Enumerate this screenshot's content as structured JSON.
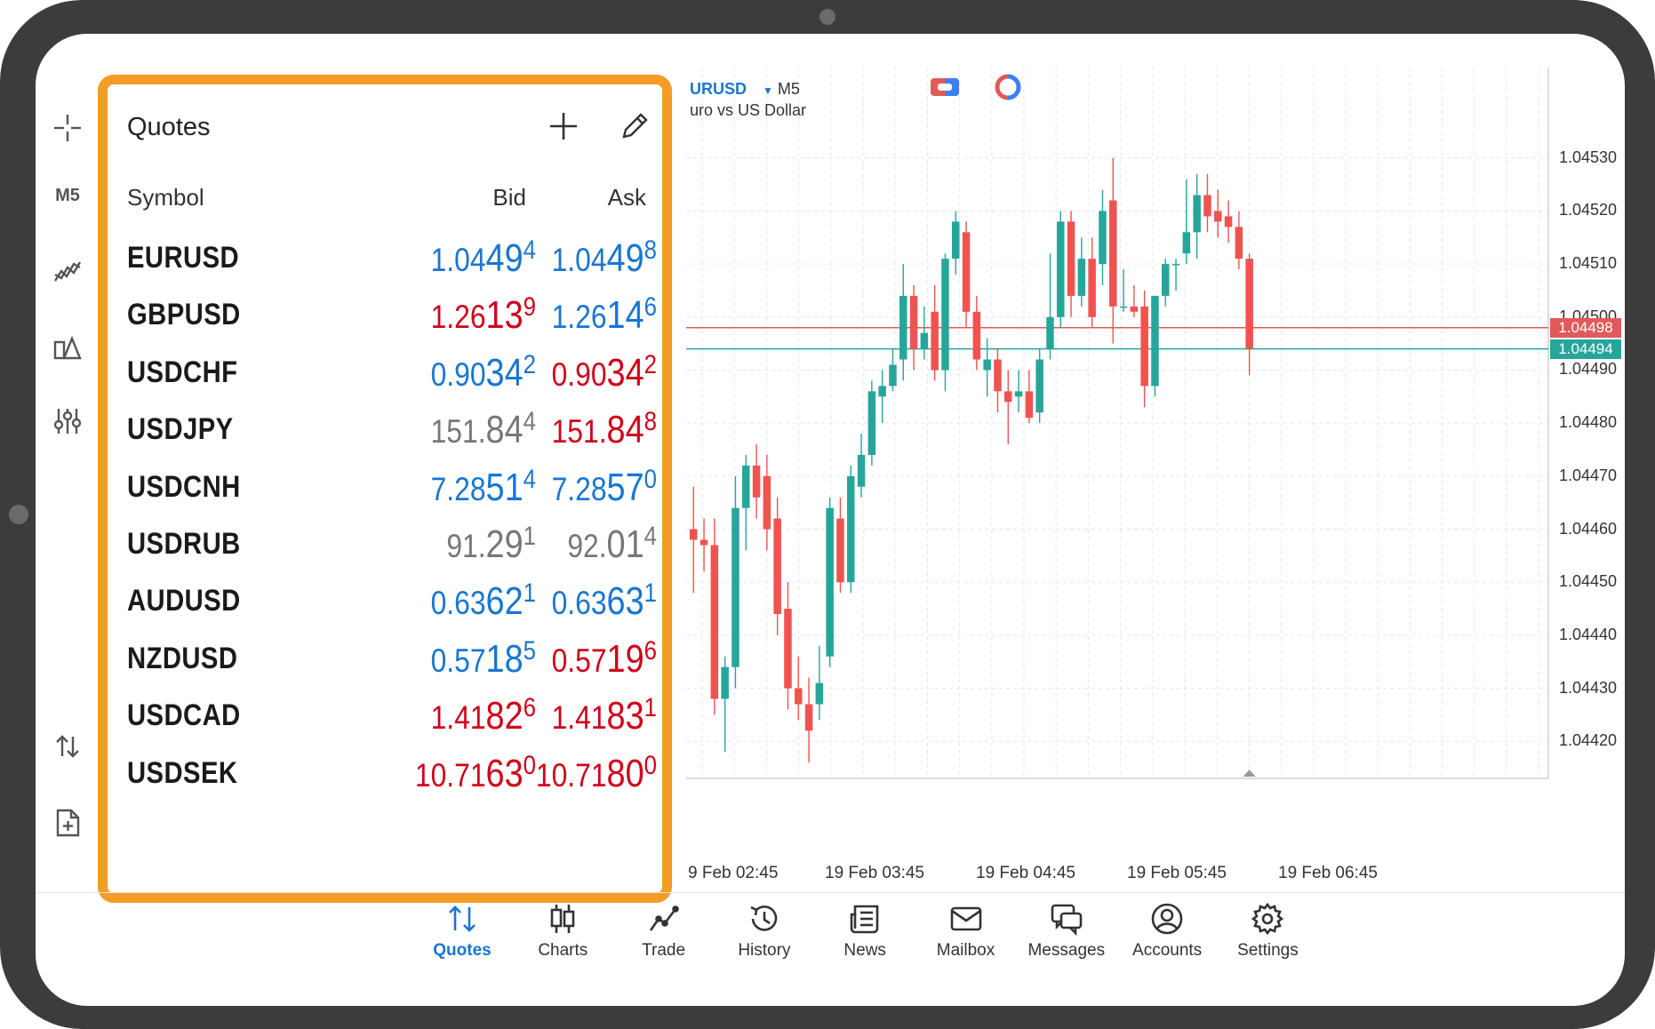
{
  "left_toolbar": {
    "timeframe_label": "M5"
  },
  "quotes": {
    "title": "Quotes",
    "columns": {
      "symbol": "Symbol",
      "bid": "Bid",
      "ask": "Ask"
    },
    "rows": [
      {
        "symbol": "EURUSD",
        "bid": [
          "1.04",
          "49",
          "4"
        ],
        "ask": [
          "1.04",
          "49",
          "8"
        ],
        "bid_dir": "up",
        "ask_dir": "up"
      },
      {
        "symbol": "GBPUSD",
        "bid": [
          "1.26",
          "13",
          "9"
        ],
        "ask": [
          "1.26",
          "14",
          "6"
        ],
        "bid_dir": "down",
        "ask_dir": "up"
      },
      {
        "symbol": "USDCHF",
        "bid": [
          "0.90",
          "34",
          "2"
        ],
        "ask": [
          "0.90",
          "34",
          "2"
        ],
        "bid_dir": "up",
        "ask_dir": "down"
      },
      {
        "symbol": "USDJPY",
        "bid": [
          "151.",
          "84",
          "4"
        ],
        "ask": [
          "151.",
          "84",
          "8"
        ],
        "bid_dir": "flat",
        "ask_dir": "down"
      },
      {
        "symbol": "USDCNH",
        "bid": [
          "7.28",
          "51",
          "4"
        ],
        "ask": [
          "7.28",
          "57",
          "0"
        ],
        "bid_dir": "up",
        "ask_dir": "up"
      },
      {
        "symbol": "USDRUB",
        "bid": [
          "91.",
          "29",
          "1"
        ],
        "ask": [
          "92.",
          "01",
          "4"
        ],
        "bid_dir": "flat",
        "ask_dir": "flat"
      },
      {
        "symbol": "AUDUSD",
        "bid": [
          "0.63",
          "62",
          "1"
        ],
        "ask": [
          "0.63",
          "63",
          "1"
        ],
        "bid_dir": "up",
        "ask_dir": "up"
      },
      {
        "symbol": "NZDUSD",
        "bid": [
          "0.57",
          "18",
          "5"
        ],
        "ask": [
          "0.57",
          "19",
          "6"
        ],
        "bid_dir": "up",
        "ask_dir": "down"
      },
      {
        "symbol": "USDCAD",
        "bid": [
          "1.41",
          "82",
          "6"
        ],
        "ask": [
          "1.41",
          "83",
          "1"
        ],
        "bid_dir": "down",
        "ask_dir": "down"
      },
      {
        "symbol": "USDSEK",
        "bid": [
          "10.71",
          "63",
          "0"
        ],
        "ask": [
          "10.71",
          "80",
          "0"
        ],
        "bid_dir": "down",
        "ask_dir": "down"
      }
    ]
  },
  "chart": {
    "symbol": "URUSD",
    "timeframe": "M5",
    "description": "uro vs US Dollar",
    "ask_tag": "1.04498",
    "bid_tag": "1.04494",
    "ask_color": "#e15a5a",
    "bid_color": "#26a69a",
    "price_labels": [
      "1.04530",
      "1.04520",
      "1.04510",
      "1.04500",
      "1.04490",
      "1.04480",
      "1.04470",
      "1.04460",
      "1.04450",
      "1.04440",
      "1.04430",
      "1.04420"
    ],
    "time_labels": [
      "9 Feb 02:45",
      "19 Feb 03:45",
      "19 Feb 04:45",
      "19 Feb 05:45",
      "19 Feb 06:45"
    ],
    "chart_data": {
      "type": "candlestick",
      "ylim": [
        1.04413,
        1.04537
      ],
      "bull_color": "#26a69a",
      "bear_color": "#ef5350",
      "candles": [
        {
          "o": 1.0446,
          "h": 1.04468,
          "l": 1.04448,
          "c": 1.04458
        },
        {
          "o": 1.04458,
          "h": 1.04462,
          "l": 1.04452,
          "c": 1.04457
        },
        {
          "o": 1.04457,
          "h": 1.04462,
          "l": 1.04425,
          "c": 1.04428
        },
        {
          "o": 1.04428,
          "h": 1.04436,
          "l": 1.04418,
          "c": 1.04434
        },
        {
          "o": 1.04434,
          "h": 1.0447,
          "l": 1.0443,
          "c": 1.04464
        },
        {
          "o": 1.04464,
          "h": 1.04474,
          "l": 1.04456,
          "c": 1.04472
        },
        {
          "o": 1.04472,
          "h": 1.04476,
          "l": 1.04462,
          "c": 1.04466
        },
        {
          "o": 1.0447,
          "h": 1.04474,
          "l": 1.04456,
          "c": 1.0446
        },
        {
          "o": 1.04462,
          "h": 1.04466,
          "l": 1.0444,
          "c": 1.04444
        },
        {
          "o": 1.04445,
          "h": 1.0445,
          "l": 1.04426,
          "c": 1.0443
        },
        {
          "o": 1.0443,
          "h": 1.04436,
          "l": 1.04424,
          "c": 1.04427
        },
        {
          "o": 1.04427,
          "h": 1.04432,
          "l": 1.04416,
          "c": 1.04422
        },
        {
          "o": 1.04427,
          "h": 1.04438,
          "l": 1.04424,
          "c": 1.04431
        },
        {
          "o": 1.04436,
          "h": 1.04466,
          "l": 1.04434,
          "c": 1.04464
        },
        {
          "o": 1.04462,
          "h": 1.04466,
          "l": 1.04448,
          "c": 1.0445
        },
        {
          "o": 1.0445,
          "h": 1.04472,
          "l": 1.04448,
          "c": 1.0447
        },
        {
          "o": 1.04468,
          "h": 1.04478,
          "l": 1.04466,
          "c": 1.04474
        },
        {
          "o": 1.04474,
          "h": 1.04488,
          "l": 1.04472,
          "c": 1.04486
        },
        {
          "o": 1.04485,
          "h": 1.0449,
          "l": 1.0448,
          "c": 1.04487
        },
        {
          "o": 1.04487,
          "h": 1.04494,
          "l": 1.04486,
          "c": 1.04491
        },
        {
          "o": 1.04492,
          "h": 1.0451,
          "l": 1.04488,
          "c": 1.04504
        },
        {
          "o": 1.04504,
          "h": 1.04506,
          "l": 1.0449,
          "c": 1.04494
        },
        {
          "o": 1.04494,
          "h": 1.04502,
          "l": 1.04492,
          "c": 1.04497
        },
        {
          "o": 1.04501,
          "h": 1.04506,
          "l": 1.04488,
          "c": 1.0449
        },
        {
          "o": 1.0449,
          "h": 1.04512,
          "l": 1.04486,
          "c": 1.04511
        },
        {
          "o": 1.04511,
          "h": 1.0452,
          "l": 1.04508,
          "c": 1.04518
        },
        {
          "o": 1.04516,
          "h": 1.04518,
          "l": 1.04498,
          "c": 1.04501
        },
        {
          "o": 1.04501,
          "h": 1.04504,
          "l": 1.0449,
          "c": 1.04492
        },
        {
          "o": 1.0449,
          "h": 1.04496,
          "l": 1.04485,
          "c": 1.04492
        },
        {
          "o": 1.04492,
          "h": 1.04494,
          "l": 1.04482,
          "c": 1.04486
        },
        {
          "o": 1.04486,
          "h": 1.0449,
          "l": 1.04476,
          "c": 1.04484
        },
        {
          "o": 1.04485,
          "h": 1.0449,
          "l": 1.04482,
          "c": 1.04486
        },
        {
          "o": 1.04486,
          "h": 1.0449,
          "l": 1.0448,
          "c": 1.04481
        },
        {
          "o": 1.04482,
          "h": 1.04494,
          "l": 1.0448,
          "c": 1.04492
        },
        {
          "o": 1.04494,
          "h": 1.04512,
          "l": 1.04492,
          "c": 1.045
        },
        {
          "o": 1.045,
          "h": 1.0452,
          "l": 1.04498,
          "c": 1.04518
        },
        {
          "o": 1.04518,
          "h": 1.0452,
          "l": 1.045,
          "c": 1.04504
        },
        {
          "o": 1.04504,
          "h": 1.04515,
          "l": 1.04502,
          "c": 1.04511
        },
        {
          "o": 1.04511,
          "h": 1.04515,
          "l": 1.04498,
          "c": 1.045
        },
        {
          "o": 1.0451,
          "h": 1.04524,
          "l": 1.04506,
          "c": 1.0452
        },
        {
          "o": 1.04522,
          "h": 1.0453,
          "l": 1.04495,
          "c": 1.04502
        },
        {
          "o": 1.04502,
          "h": 1.04509,
          "l": 1.04501,
          "c": 1.04502
        },
        {
          "o": 1.04502,
          "h": 1.04506,
          "l": 1.045,
          "c": 1.04501
        },
        {
          "o": 1.04502,
          "h": 1.04505,
          "l": 1.04483,
          "c": 1.04487
        },
        {
          "o": 1.04487,
          "h": 1.04504,
          "l": 1.04485,
          "c": 1.04504
        },
        {
          "o": 1.04504,
          "h": 1.04511,
          "l": 1.04502,
          "c": 1.0451
        },
        {
          "o": 1.0451,
          "h": 1.04511,
          "l": 1.04505,
          "c": 1.0451
        },
        {
          "o": 1.04512,
          "h": 1.04526,
          "l": 1.0451,
          "c": 1.04516
        },
        {
          "o": 1.04516,
          "h": 1.04527,
          "l": 1.04511,
          "c": 1.04523
        },
        {
          "o": 1.04523,
          "h": 1.04527,
          "l": 1.04516,
          "c": 1.04519
        },
        {
          "o": 1.0452,
          "h": 1.04524,
          "l": 1.04515,
          "c": 1.04518
        },
        {
          "o": 1.04519,
          "h": 1.04522,
          "l": 1.04514,
          "c": 1.04517
        },
        {
          "o": 1.04517,
          "h": 1.0452,
          "l": 1.04509,
          "c": 1.04511
        },
        {
          "o": 1.04511,
          "h": 1.04512,
          "l": 1.04489,
          "c": 1.04494
        }
      ]
    }
  },
  "bottom_nav": [
    {
      "label": "Quotes",
      "icon": "quotes-arrows-icon",
      "active": true
    },
    {
      "label": "Charts",
      "icon": "charts-candles-icon",
      "active": false
    },
    {
      "label": "Trade",
      "icon": "trade-line-icon",
      "active": false
    },
    {
      "label": "History",
      "icon": "history-clock-icon",
      "active": false
    },
    {
      "label": "News",
      "icon": "news-icon",
      "active": false
    },
    {
      "label": "Mailbox",
      "icon": "mail-icon",
      "active": false
    },
    {
      "label": "Messages",
      "icon": "messages-icon",
      "active": false
    },
    {
      "label": "Accounts",
      "icon": "accounts-icon",
      "active": false
    },
    {
      "label": "Settings",
      "icon": "settings-gear-icon",
      "active": false
    }
  ]
}
